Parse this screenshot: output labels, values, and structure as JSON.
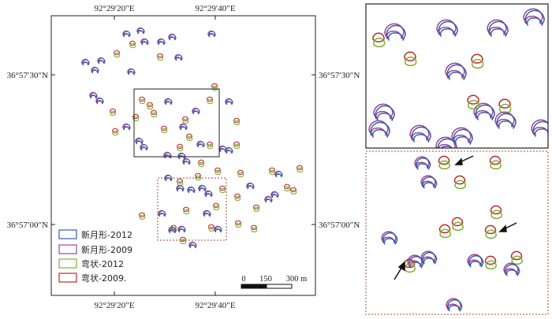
{
  "colors": {
    "dune_2012": "#3a5fa8",
    "dune_2009": "#a0429a",
    "bowed_2012": "#7ab32e",
    "bowed_2009": "#c2262e",
    "frame": "#222222",
    "inset_frame": "#a0522d"
  },
  "map": {
    "top_labels": [
      "92°29′20″E",
      "92°29′40″E"
    ],
    "bottom_labels": [
      "92°29′20″E",
      "92°29′40″E"
    ],
    "left_labels": [
      "36°57′30″N",
      "36°57′00″N"
    ],
    "right_labels": [
      "36°57′30″N",
      "36°57′00″N"
    ]
  },
  "legend": [
    {
      "label": "新月形-2012",
      "color": "dune_2012",
      "symbol": "box"
    },
    {
      "label": "新月形-2009",
      "color": "dune_2009",
      "symbol": "box"
    },
    {
      "label": "弯状-2012",
      "color": "bowed_2012",
      "symbol": "box"
    },
    {
      "label": "弯状-2009.",
      "color": "bowed_2009",
      "symbol": "box"
    }
  ],
  "scale_bar": {
    "ticks": [
      "0",
      "150",
      "300 m"
    ]
  },
  "arrows_count": 3
}
